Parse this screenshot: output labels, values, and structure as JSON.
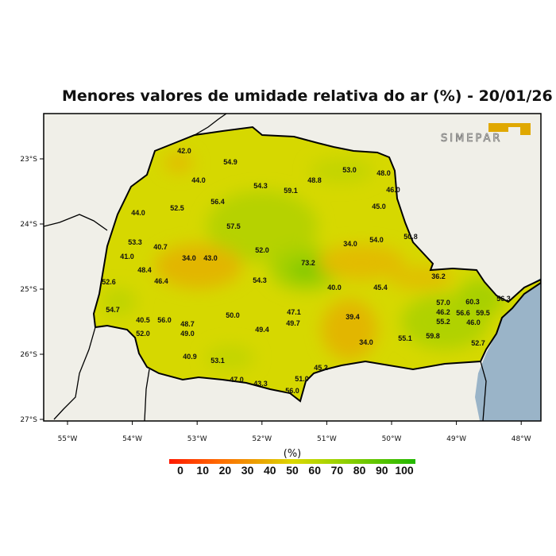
{
  "title": "Menores valores de umidade relativa do ar (%) - 20/01/26",
  "logo_text": "SIMEPAR",
  "colors": {
    "base": "#d6d800",
    "ocean": "#9ab4c8",
    "land": "#f0efe8",
    "orange": "#e2b400",
    "green": "#b2d200",
    "deep_green": "#7cc800"
  },
  "lat_labels": [
    "23°S",
    "24°S",
    "25°S",
    "26°S",
    "27°S"
  ],
  "lon_labels": [
    "55°W",
    "54°W",
    "53°W",
    "52°W",
    "51°W",
    "50°W",
    "49°W",
    "48°W"
  ],
  "colorbar": {
    "unit": "(%)",
    "ticks": [
      "0",
      "10",
      "20",
      "30",
      "40",
      "50",
      "60",
      "70",
      "80",
      "90",
      "100"
    ]
  },
  "stations": [
    "42.0",
    "54.9",
    "44.0",
    "54.3",
    "59.1",
    "48.8",
    "53.0",
    "48.0",
    "46.0",
    "45.0",
    "56.4",
    "52.5",
    "44.0",
    "57.5",
    "53.3",
    "40.7",
    "41.0",
    "34.0",
    "43.0",
    "52.0",
    "73.2",
    "34.0",
    "54.0",
    "50.8",
    "48.4",
    "46.4",
    "52.6",
    "54.3",
    "40.0",
    "45.4",
    "36.2",
    "54.7",
    "50.0",
    "47.1",
    "49.7",
    "49.4",
    "39.4",
    "40.5",
    "56.0",
    "48.7",
    "49.0",
    "52.0",
    "34.0",
    "55.1",
    "59.8",
    "57.0",
    "46.2",
    "55.2",
    "56.6",
    "59.5",
    "46.0",
    "60.3",
    "56.3",
    "52.7",
    "40.9",
    "53.1",
    "47.0",
    "43.3",
    "51.0",
    "56.0",
    "45.2"
  ]
}
